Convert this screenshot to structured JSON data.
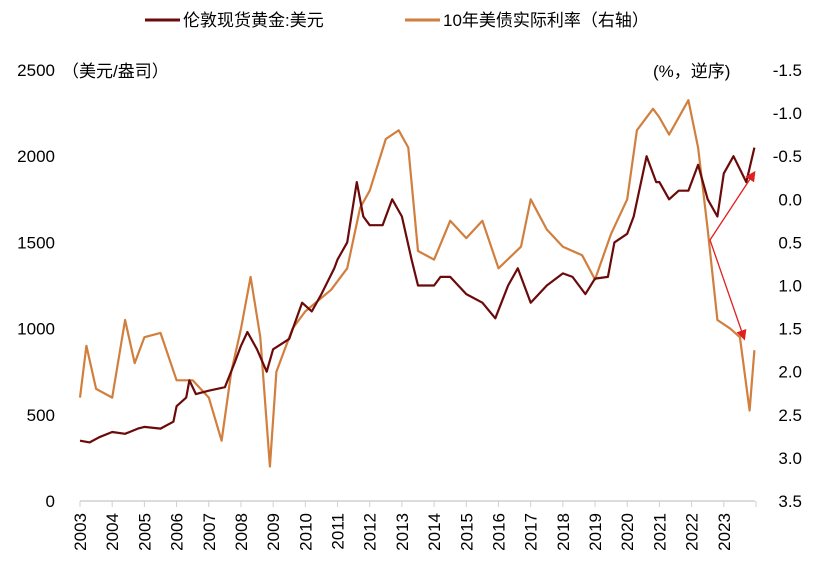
{
  "chart_data": {
    "type": "line",
    "legend": {
      "placement": "top",
      "items": [
        "伦敦现货黄金:美元",
        "10年美债实际利率（右轴）"
      ]
    },
    "left_axis": {
      "unit_label": "（美元/盎司）",
      "ylim": [
        0,
        2500
      ],
      "ticks": [
        "0",
        "500",
        "1000",
        "1500",
        "2000",
        "2500"
      ]
    },
    "right_axis": {
      "unit_label": "(%，逆序)",
      "ylim": [
        -1.5,
        3.5
      ],
      "reversed": true,
      "ticks": [
        "-1.5",
        "-1.0",
        "-0.5",
        "0.0",
        "0.5",
        "1.0",
        "1.5",
        "2.0",
        "2.5",
        "3.0",
        "3.5"
      ]
    },
    "x_axis": {
      "xlim": [
        2003,
        2024
      ],
      "ticks": [
        "2003",
        "2004",
        "2005",
        "2006",
        "2007",
        "2008",
        "2009",
        "2010",
        "2011",
        "2012",
        "2013",
        "2014",
        "2015",
        "2016",
        "2017",
        "2018",
        "2019",
        "2020",
        "2021",
        "2022",
        "2023"
      ]
    },
    "grid": false,
    "series": [
      {
        "name": "伦敦现货黄金:美元",
        "axis": "left",
        "color": "#6b0a0a",
        "x": [
          2003,
          2003.3,
          2003.6,
          2004,
          2004.4,
          2004.8,
          2005,
          2005.5,
          2005.9,
          2006,
          2006.3,
          2006.4,
          2006.6,
          2007,
          2007.5,
          2007.8,
          2008,
          2008.2,
          2008.5,
          2008.8,
          2009,
          2009.5,
          2009.9,
          2010.2,
          2010.5,
          2010.9,
          2011,
          2011.3,
          2011.6,
          2011.8,
          2012,
          2012.4,
          2012.7,
          2013,
          2013.3,
          2013.5,
          2014,
          2014.2,
          2014.5,
          2015,
          2015.5,
          2015.9,
          2016.3,
          2016.6,
          2017,
          2017.5,
          2018,
          2018.3,
          2018.7,
          2019,
          2019.4,
          2019.6,
          2020,
          2020.2,
          2020.6,
          2020.9,
          2021,
          2021.3,
          2021.6,
          2021.9,
          2022.2,
          2022.5,
          2022.8,
          2023,
          2023.3,
          2023.7,
          2023.95
        ],
        "y": [
          350,
          340,
          370,
          400,
          390,
          420,
          430,
          420,
          460,
          550,
          600,
          700,
          620,
          640,
          660,
          800,
          900,
          980,
          880,
          750,
          880,
          940,
          1150,
          1100,
          1200,
          1350,
          1400,
          1500,
          1850,
          1650,
          1600,
          1600,
          1750,
          1650,
          1400,
          1250,
          1250,
          1300,
          1300,
          1200,
          1150,
          1060,
          1250,
          1350,
          1150,
          1250,
          1320,
          1300,
          1200,
          1290,
          1300,
          1500,
          1550,
          1650,
          2000,
          1850,
          1850,
          1750,
          1800,
          1800,
          1950,
          1750,
          1650,
          1900,
          2000,
          1850,
          2050
        ]
      },
      {
        "name": "10年美债实际利率（右轴）",
        "axis": "right",
        "color": "#d17f3e",
        "x": [
          2003,
          2003.2,
          2003.5,
          2004,
          2004.4,
          2004.7,
          2005,
          2005.5,
          2006,
          2006.5,
          2007,
          2007.4,
          2007.7,
          2008,
          2008.3,
          2008.6,
          2008.9,
          2009.1,
          2009.6,
          2010,
          2010.8,
          2011.3,
          2011.7,
          2012,
          2012.5,
          2012.9,
          2013.2,
          2013.5,
          2014,
          2014.5,
          2015,
          2015.5,
          2016,
          2016.7,
          2017,
          2017.5,
          2018,
          2018.6,
          2019,
          2019.5,
          2020,
          2020.3,
          2020.8,
          2021,
          2021.3,
          2021.9,
          2022.2,
          2022.5,
          2022.8,
          2023.2,
          2023.5,
          2023.8,
          2023.95
        ],
        "y": [
          2.3,
          1.7,
          2.2,
          2.3,
          1.4,
          1.9,
          1.6,
          1.55,
          2.1,
          2.1,
          2.3,
          2.8,
          2.0,
          1.5,
          0.9,
          1.6,
          3.1,
          2.0,
          1.5,
          1.3,
          1.05,
          0.8,
          0.1,
          -0.1,
          -0.7,
          -0.8,
          -0.6,
          0.6,
          0.7,
          0.25,
          0.45,
          0.25,
          0.8,
          0.55,
          0.0,
          0.35,
          0.55,
          0.65,
          0.93,
          0.4,
          0.0,
          -0.8,
          -1.05,
          -0.95,
          -0.75,
          -1.15,
          -0.6,
          0.35,
          1.4,
          1.5,
          1.6,
          2.45,
          1.75
        ]
      }
    ]
  }
}
